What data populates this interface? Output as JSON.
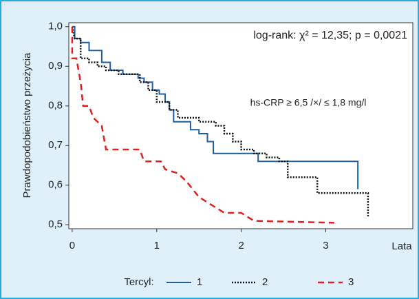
{
  "chart_data": {
    "type": "line",
    "x_label": "Lata",
    "y_label": "Prawdopodobieństwo przeżycia",
    "annotations": [
      "log-rank: χ² = 12,35; p = 0,0021",
      "hs-CRP ≥ 6,5 /×/ ≤ 1,8 mg/l"
    ],
    "legend_title": "Tercyl:",
    "xlim": [
      -0.04,
      4.03
    ],
    "ylim": [
      0.49,
      1.01
    ],
    "xticks": [
      0,
      1,
      2,
      3
    ],
    "yticks": [
      {
        "value": 1,
        "label": "1,0"
      },
      {
        "value": 0.9,
        "label": "0,9"
      },
      {
        "value": 0.8,
        "label": "0,8"
      },
      {
        "value": 0.7,
        "label": "0,7"
      },
      {
        "value": 0.6,
        "label": "0,6"
      },
      {
        "value": 0.5,
        "label": "0,5"
      }
    ],
    "series": [
      {
        "name": "1",
        "color": "#1f5f9e",
        "dash": "solid",
        "x": [
          0,
          0.03,
          0.03,
          0.1,
          0.1,
          0.2,
          0.2,
          0.35,
          0.35,
          0.45,
          0.45,
          0.6,
          0.6,
          0.78,
          0.78,
          0.85,
          0.85,
          0.95,
          0.95,
          1.03,
          1.03,
          1.1,
          1.1,
          1.15,
          1.15,
          1.2,
          1.2,
          1.4,
          1.4,
          1.5,
          1.5,
          1.6,
          1.6,
          1.67,
          1.67,
          2.2,
          2.2,
          3.38,
          3.38
        ],
        "values": [
          1,
          1,
          0.97,
          0.97,
          0.96,
          0.96,
          0.94,
          0.94,
          0.91,
          0.91,
          0.89,
          0.89,
          0.88,
          0.88,
          0.87,
          0.87,
          0.86,
          0.86,
          0.84,
          0.84,
          0.83,
          0.83,
          0.81,
          0.81,
          0.79,
          0.79,
          0.76,
          0.76,
          0.74,
          0.74,
          0.73,
          0.73,
          0.71,
          0.71,
          0.68,
          0.68,
          0.66,
          0.66,
          0.59
        ]
      },
      {
        "name": "2",
        "color": "#111111",
        "dash": "dotted",
        "x": [
          0,
          0.03,
          0.1,
          0.1,
          0.2,
          0.2,
          0.3,
          0.3,
          0.4,
          0.4,
          0.55,
          0.55,
          0.8,
          0.8,
          0.9,
          0.9,
          1.0,
          1.0,
          1.15,
          1.15,
          1.25,
          1.25,
          1.5,
          1.5,
          1.7,
          1.7,
          1.8,
          1.8,
          1.9,
          1.9,
          2.0,
          2.0,
          2.15,
          2.15,
          2.3,
          2.3,
          2.45,
          2.45,
          2.55,
          2.55,
          2.9,
          2.9,
          3.5,
          3.5
        ],
        "values": [
          1,
          0.97,
          0.97,
          0.92,
          0.92,
          0.91,
          0.91,
          0.9,
          0.9,
          0.89,
          0.89,
          0.88,
          0.88,
          0.86,
          0.86,
          0.84,
          0.84,
          0.81,
          0.81,
          0.79,
          0.79,
          0.77,
          0.77,
          0.76,
          0.76,
          0.75,
          0.75,
          0.73,
          0.73,
          0.71,
          0.71,
          0.69,
          0.69,
          0.68,
          0.68,
          0.67,
          0.67,
          0.66,
          0.66,
          0.62,
          0.62,
          0.58,
          0.58,
          0.52
        ]
      },
      {
        "name": "3",
        "color": "#e02020",
        "dash": "dashed",
        "x": [
          0,
          0,
          0.05,
          0.1,
          0.13,
          0.2,
          0.25,
          0.3,
          0.35,
          0.4,
          0.8,
          0.85,
          1.05,
          1.1,
          1.25,
          1.35,
          1.5,
          1.65,
          1.8,
          2.0,
          2.15,
          3.1
        ],
        "values": [
          1,
          0.92,
          0.92,
          0.86,
          0.8,
          0.8,
          0.77,
          0.76,
          0.75,
          0.69,
          0.69,
          0.66,
          0.66,
          0.64,
          0.63,
          0.61,
          0.57,
          0.55,
          0.53,
          0.53,
          0.51,
          0.505
        ]
      }
    ]
  }
}
